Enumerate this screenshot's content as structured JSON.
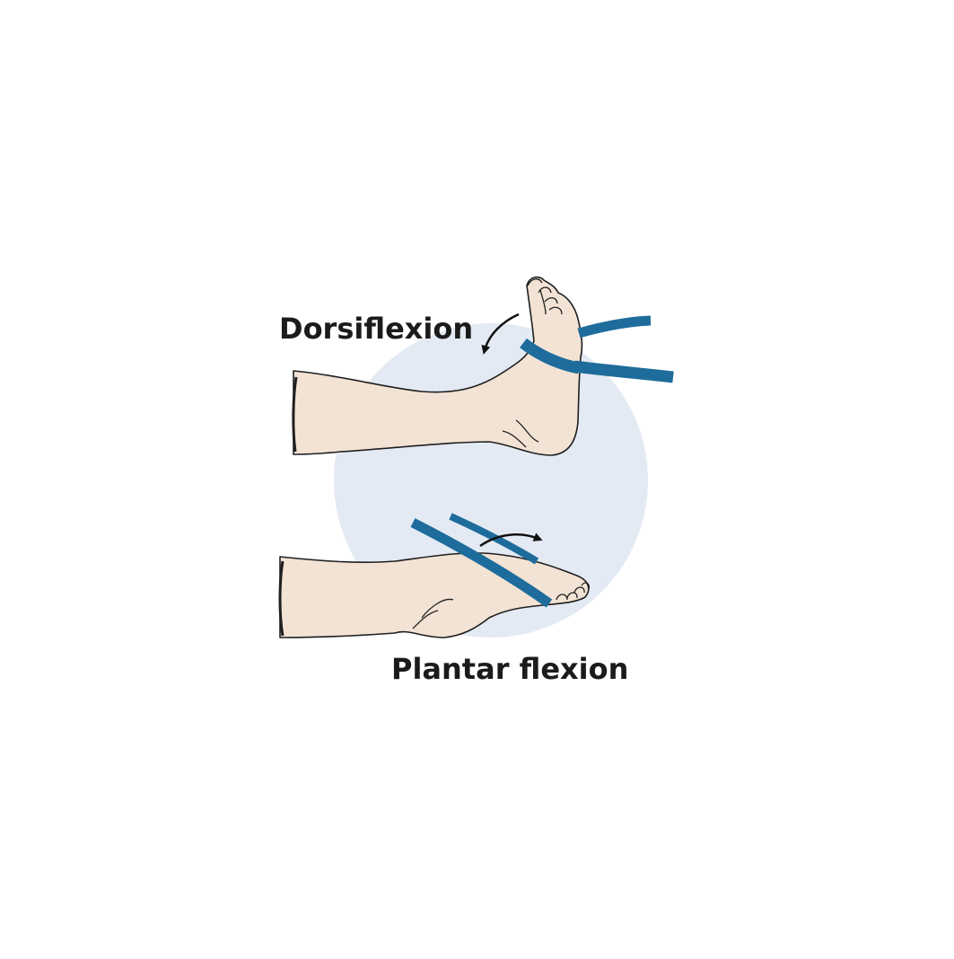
{
  "labels": {
    "dorsiflexion": "Dorsiflexion",
    "plantar_flexion": "Plantar flexion"
  },
  "colors": {
    "background": "#ffffff",
    "circle": "#e4eaf3",
    "skin": "#f2e3d5",
    "outline": "#1f1f1f",
    "band": "#1e6c9c",
    "arrow": "#111111"
  },
  "icons": {
    "dorsiflexion_arrow": "curved-arrow-down-left",
    "plantar_arrow": "curved-arrow-right"
  }
}
